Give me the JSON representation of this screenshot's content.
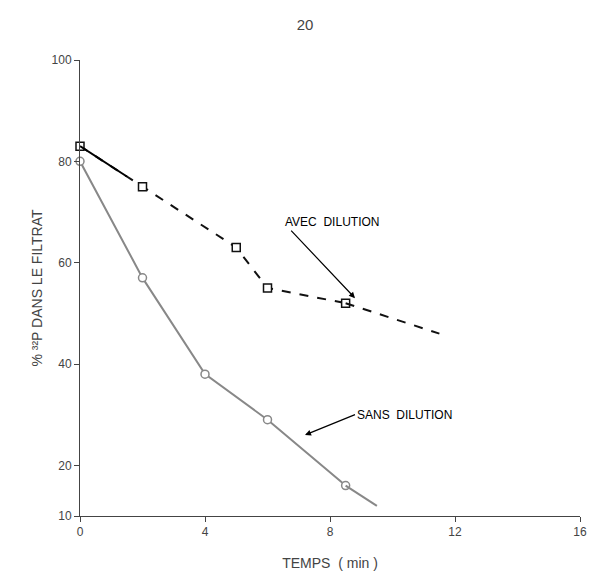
{
  "chart_data": {
    "type": "line",
    "title": "20",
    "x_label": "TEMPS  ( min )",
    "y_label": "% ³²P DANS LE FILTRAT",
    "xlim": [
      0,
      16
    ],
    "ylim": [
      10,
      100
    ],
    "xticks": [
      0,
      4,
      8,
      12,
      16
    ],
    "yticks": [
      10,
      20,
      40,
      60,
      80,
      100
    ],
    "grid": false,
    "series": [
      {
        "x": [
          0,
          2,
          4,
          6,
          8.5
        ],
        "values": [
          80,
          57,
          38,
          29,
          16
        ],
        "color": "#888888",
        "line_style": "solid",
        "marker": "circle"
      },
      {
        "x": [
          8.5,
          9.5
        ],
        "values": [
          16,
          12
        ],
        "color": "#888888",
        "line_style": "solid",
        "marker": "none"
      },
      {
        "x": [
          0,
          2,
          5,
          6,
          8.5
        ],
        "values": [
          83,
          75,
          63,
          55,
          52
        ],
        "color": "#111111",
        "line_style": "dashed",
        "marker": "square"
      },
      {
        "x": [
          8.5,
          11.5
        ],
        "values": [
          52,
          46
        ],
        "color": "#111111",
        "line_style": "dashed",
        "marker": "none"
      },
      {
        "x": [
          0,
          1.5
        ],
        "values": [
          83,
          77
        ],
        "color": "#000000",
        "line_style": "solid",
        "marker": "none"
      }
    ],
    "annotations": [
      {
        "text": "AVEC  DILUTION",
        "x": 8.8,
        "y": 53,
        "text_x": 6.5,
        "text_y": 68
      },
      {
        "text": "SANS  DILUTION",
        "x": 7.2,
        "y": 26,
        "text_x": 8.8,
        "text_y": 30
      }
    ]
  }
}
